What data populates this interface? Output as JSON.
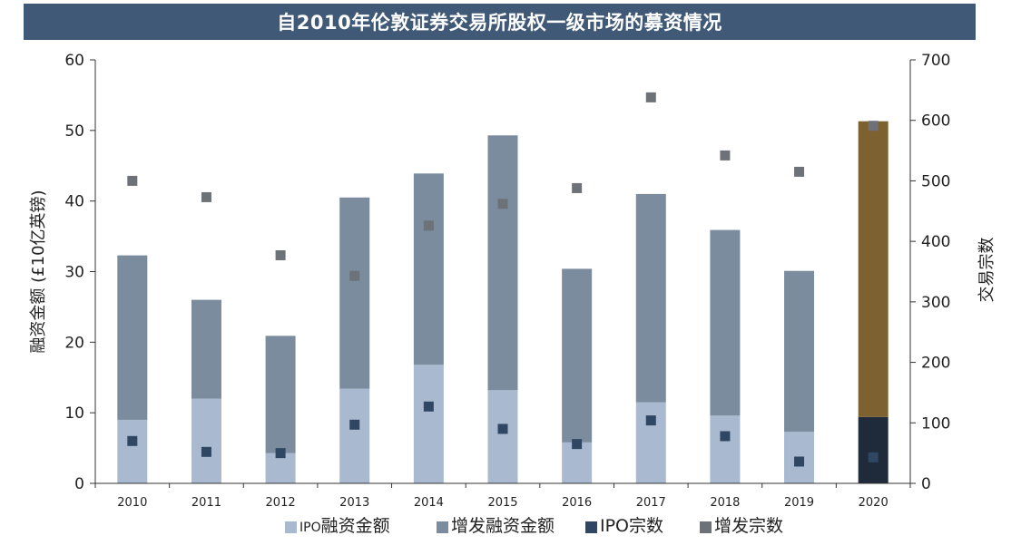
{
  "chart_data": {
    "type": "bar",
    "title": "自2010年伦敦证券交易所股权一级市场的募资情况",
    "categories": [
      "2010",
      "2011",
      "2012",
      "2013",
      "2014",
      "2015",
      "2016",
      "2017",
      "2018",
      "2019",
      "2020"
    ],
    "ylabel": "融资金额 (£10亿英镑)",
    "y2label": "交易宗数",
    "ylim": [
      0,
      60
    ],
    "y2lim": [
      0,
      700
    ],
    "yticks": [
      "0",
      "10",
      "20",
      "30",
      "40",
      "50",
      "60"
    ],
    "y2ticks": [
      "0",
      "100",
      "200",
      "300",
      "400",
      "500",
      "600",
      "700"
    ],
    "series": [
      {
        "name": "IPO融资金额",
        "kind": "stacked-bar",
        "axis": "left",
        "values": [
          9.0,
          12.0,
          4.3,
          13.4,
          16.8,
          13.2,
          5.8,
          11.5,
          9.6,
          7.3,
          9.4
        ]
      },
      {
        "name": "增发融资金额",
        "kind": "stacked-bar",
        "axis": "left",
        "values": [
          23.3,
          14.0,
          16.6,
          27.1,
          27.1,
          36.1,
          24.6,
          29.5,
          26.3,
          22.8,
          41.9
        ]
      },
      {
        "name": "IPO宗数",
        "kind": "scatter",
        "axis": "right",
        "values": [
          70,
          52,
          50,
          97,
          127,
          90,
          65,
          104,
          78,
          36,
          43
        ]
      },
      {
        "name": "增发宗数",
        "kind": "scatter",
        "axis": "right",
        "values": [
          500,
          473,
          377,
          343,
          426,
          462,
          488,
          638,
          542,
          515,
          591
        ]
      }
    ],
    "legend_items": [
      {
        "prefix": "IPO",
        "text": "融资金额"
      },
      {
        "prefix": "",
        "text": "增发融资金额"
      },
      {
        "prefix": "",
        "text": "IPO宗数"
      },
      {
        "prefix": "",
        "text": "增发宗数"
      }
    ],
    "grid": false,
    "legend_position": "bottom-center",
    "colors": {
      "title_bg": "#3f5977",
      "ipo_bar": "#a9b9d0",
      "secondary_bar": "#7a8c9e",
      "highlight_ipo_bar": "#1f2a3a",
      "highlight_secondary_bar": "#7d6130",
      "ipo_marker": "#2f4763",
      "secondary_marker": "#6d7278"
    },
    "highlight_category": "2020"
  }
}
